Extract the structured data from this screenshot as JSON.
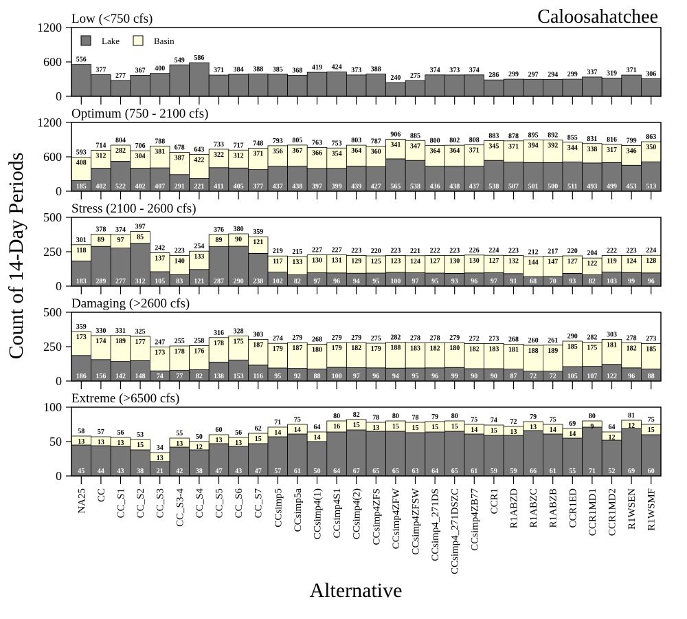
{
  "chart_data": {
    "type": "bar",
    "stacked": true,
    "title": "Caloosahatchee",
    "xlabel": "Alternative",
    "ylabel": "Count of 14-Day Periods",
    "legend": {
      "placement": "top-left",
      "entries": [
        "Lake",
        "Basin"
      ]
    },
    "colors": {
      "Lake": "#777777",
      "Basin": "#ffffdd"
    },
    "grid": false,
    "categories": [
      "NA25",
      "CC",
      "CC_S1",
      "CC_S2",
      "CC_S3",
      "CC_S3-4",
      "CC_S4",
      "CC_S5",
      "CC_S6",
      "CC_S7",
      "CCsimp5",
      "CCsimp5a",
      "CCsimp4(1)",
      "CCsimp4S1",
      "CCsimp4(2)",
      "CCsimp4ZFS",
      "CCsimp4ZFW",
      "CCsimp4ZFSW",
      "CCsimp4_271DS",
      "CCsimp4_271DSZC",
      "CCsimp4ZB77",
      "CCR1",
      "R1ABZD",
      "R1ABZC",
      "R1ABZB",
      "CCR1ED",
      "CCR1MD1",
      "CCR1MD2",
      "R1WSEN",
      "R1WSMF"
    ],
    "panels": [
      {
        "title": "Low (<750 cfs)",
        "ylim": [
          0,
          1200
        ],
        "yticks": [
          0,
          600,
          1200
        ],
        "series": [
          {
            "name": "Lake",
            "values": [
              556,
              377,
              277,
              367,
              400,
              549,
              586,
              371,
              384,
              388,
              385,
              368,
              419,
              424,
              373,
              388,
              240,
              275,
              374,
              373,
              374,
              286,
              299,
              297,
              294,
              299,
              337,
              319,
              371,
              306
            ]
          }
        ],
        "totals": [
          556,
          377,
          277,
          367,
          400,
          549,
          586,
          371,
          384,
          388,
          385,
          368,
          419,
          424,
          373,
          388,
          240,
          275,
          374,
          373,
          374,
          286,
          299,
          297,
          294,
          299,
          337,
          319,
          371,
          306
        ]
      },
      {
        "title": "Optimum (750 - 2100 cfs)",
        "ylim": [
          0,
          1200
        ],
        "yticks": [
          0,
          600,
          1200
        ],
        "series": [
          {
            "name": "Lake",
            "values": [
              185,
              402,
              522,
              402,
              407,
              291,
              221,
              411,
              405,
              377,
              437,
              438,
              397,
              399,
              439,
              427,
              565,
              538,
              436,
              438,
              437,
              538,
              507,
              501,
              500,
              511,
              493,
              499,
              453,
              513
            ]
          },
          {
            "name": "Basin",
            "values": [
              408,
              312,
              282,
              304,
              381,
              387,
              422,
              322,
              312,
              371,
              356,
              367,
              366,
              354,
              364,
              360,
              341,
              347,
              364,
              364,
              371,
              345,
              371,
              394,
              392,
              344,
              338,
              317,
              346,
              350
            ]
          }
        ],
        "totals": [
          593,
          714,
          804,
          706,
          788,
          678,
          643,
          733,
          717,
          748,
          793,
          805,
          763,
          753,
          803,
          787,
          906,
          885,
          800,
          802,
          808,
          883,
          878,
          895,
          892,
          855,
          831,
          816,
          799,
          863
        ]
      },
      {
        "title": "Stress (2100 - 2600 cfs)",
        "ylim": [
          0,
          500
        ],
        "yticks": [
          0,
          250,
          500
        ],
        "series": [
          {
            "name": "Lake",
            "values": [
              183,
              289,
              277,
              312,
              105,
              83,
              121,
              287,
              290,
              238,
              102,
              82,
              97,
              96,
              94,
              95,
              100,
              97,
              95,
              93,
              96,
              97,
              91,
              68,
              70,
              93,
              82,
              103,
              99,
              96
            ]
          },
          {
            "name": "Basin",
            "values": [
              118,
              89,
              97,
              85,
              137,
              140,
              133,
              89,
              90,
              121,
              117,
              133,
              130,
              131,
              129,
              125,
              123,
              124,
              127,
              130,
              130,
              127,
              132,
              144,
              147,
              127,
              122,
              119,
              124,
              128
            ]
          }
        ],
        "totals": [
          301,
          378,
          374,
          397,
          242,
          223,
          254,
          376,
          380,
          359,
          219,
          215,
          227,
          227,
          223,
          220,
          223,
          221,
          222,
          223,
          226,
          224,
          223,
          212,
          217,
          220,
          204,
          222,
          223,
          224
        ]
      },
      {
        "title": "Damaging (>2600 cfs)",
        "ylim": [
          0,
          500
        ],
        "yticks": [
          0,
          250,
          500
        ],
        "series": [
          {
            "name": "Lake",
            "values": [
              186,
              156,
              142,
              148,
              74,
              77,
              82,
              138,
              153,
              116,
              95,
              92,
              88,
              100,
              97,
              96,
              94,
              95,
              96,
              99,
              90,
              90,
              87,
              72,
              72,
              105,
              107,
              122,
              96,
              88
            ]
          },
          {
            "name": "Basin",
            "values": [
              173,
              174,
              189,
              177,
              173,
              178,
              176,
              178,
              175,
              187,
              179,
              187,
              180,
              179,
              182,
              179,
              188,
              183,
              182,
              180,
              182,
              183,
              181,
              188,
              189,
              185,
              175,
              181,
              182,
              185
            ]
          }
        ],
        "totals": [
          359,
          330,
          331,
          325,
          247,
          255,
          258,
          316,
          328,
          303,
          274,
          279,
          268,
          279,
          279,
          275,
          282,
          278,
          278,
          279,
          272,
          273,
          268,
          260,
          261,
          290,
          282,
          303,
          278,
          273
        ]
      },
      {
        "title": "Extreme (>6500 cfs)",
        "ylim": [
          0,
          100
        ],
        "yticks": [
          0,
          50,
          100
        ],
        "series": [
          {
            "name": "Lake",
            "values": [
              45,
              44,
              43,
              38,
              21,
              42,
              38,
              47,
              43,
              47,
              57,
              61,
              50,
              64,
              67,
              65,
              65,
              63,
              64,
              65,
              61,
              59,
              59,
              66,
              61,
              55,
              71,
              52,
              69,
              60
            ]
          },
          {
            "name": "Basin",
            "values": [
              13,
              13,
              13,
              15,
              13,
              13,
              12,
              13,
              13,
              15,
              14,
              14,
              14,
              16,
              15,
              13,
              15,
              15,
              15,
              15,
              14,
              15,
              13,
              13,
              14,
              14,
              9,
              12,
              12,
              15
            ]
          }
        ],
        "totals": [
          58,
          57,
          56,
          53,
          34,
          55,
          50,
          60,
          56,
          62,
          71,
          75,
          64,
          80,
          82,
          78,
          80,
          78,
          79,
          80,
          75,
          74,
          72,
          79,
          75,
          69,
          80,
          64,
          81,
          75
        ]
      }
    ]
  }
}
